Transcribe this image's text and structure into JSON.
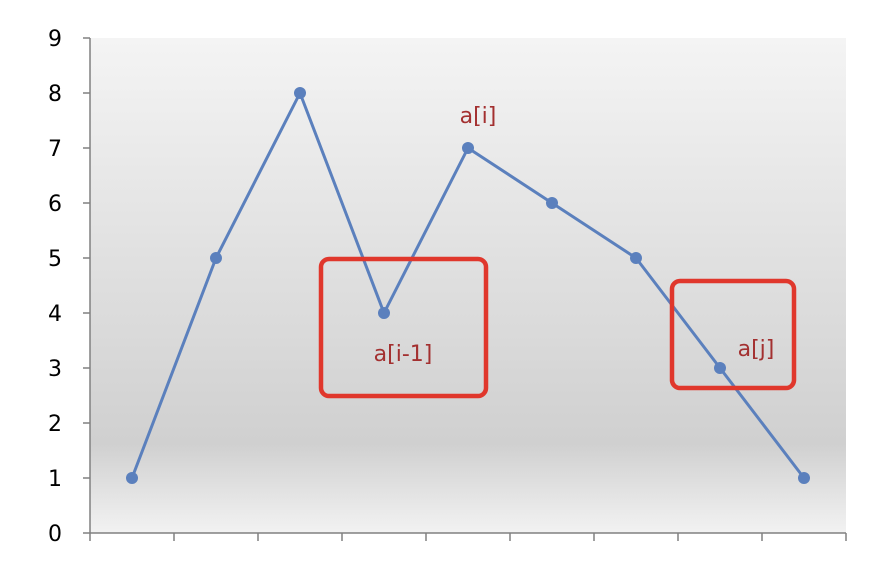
{
  "chart_data": {
    "type": "line",
    "x": [
      1,
      2,
      3,
      4,
      5,
      6,
      7,
      8,
      9
    ],
    "series": [
      {
        "values": [
          1,
          5,
          8,
          4,
          7,
          6,
          5,
          3,
          1
        ]
      }
    ],
    "ylim": [
      0,
      9
    ],
    "yticks": [
      "0",
      "1",
      "2",
      "3",
      "4",
      "5",
      "6",
      "7",
      "8",
      "9"
    ],
    "xtick_count": 10,
    "grid": false,
    "legend": "none",
    "annotations": [
      {
        "text": "a[i]",
        "point_index": 4,
        "boxed": false
      },
      {
        "text": "a[i-1]",
        "point_index": 3,
        "boxed": true
      },
      {
        "text": "a[j]",
        "point_index": 7,
        "boxed": true
      }
    ],
    "colors": {
      "line": "#5b80bd",
      "annotation_text": "#a33030",
      "annotation_box": "#e0372c",
      "background_top": "#f4f4f4",
      "background_mid": "#d0d0d0",
      "background_bottom": "#f2f2f2"
    }
  }
}
